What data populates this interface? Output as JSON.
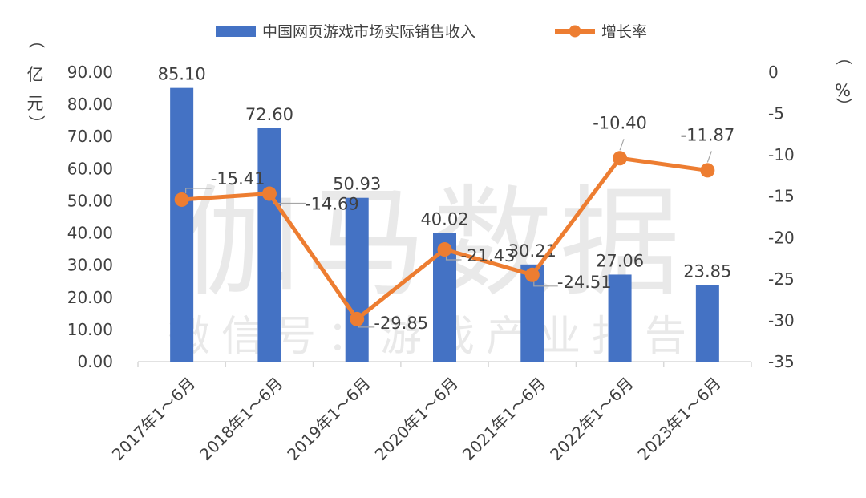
{
  "chart_data": {
    "type": "bar",
    "categories": [
      "2017年1～6月",
      "2018年1～6月",
      "2019年1～6月",
      "2020年1～6月",
      "2021年1～6月",
      "2022年1～6月",
      "2023年1～6月"
    ],
    "series": [
      {
        "name": "中国网页游戏市场实际销售收入",
        "type": "bar",
        "axis": "left",
        "color": "#4472C4",
        "values": [
          85.1,
          72.6,
          50.93,
          40.02,
          30.21,
          27.06,
          23.85
        ],
        "labels": [
          "85.10",
          "72.60",
          "50.93",
          "40.02",
          "30.21",
          "27.06",
          "23.85"
        ]
      },
      {
        "name": "增长率",
        "type": "line",
        "axis": "right",
        "color": "#ED7D31",
        "values": [
          -15.41,
          -14.69,
          -29.85,
          -21.43,
          -24.51,
          -10.4,
          -11.87
        ],
        "labels": [
          "-15.41",
          "-14.69",
          "-29.85",
          "-21.43",
          "-24.51",
          "-10.40",
          "-11.87"
        ]
      }
    ],
    "y_left": {
      "unit_chars": [
        "（",
        "亿",
        "元",
        "）"
      ],
      "ylim": [
        0,
        90
      ],
      "ticks": [
        "0.00",
        "10.00",
        "20.00",
        "30.00",
        "40.00",
        "50.00",
        "60.00",
        "70.00",
        "80.00",
        "90.00"
      ]
    },
    "y_right": {
      "unit_chars": [
        "（",
        "%",
        "）"
      ],
      "ylim": [
        -35,
        0
      ],
      "ticks": [
        "0",
        "-5",
        "-10",
        "-15",
        "-20",
        "-25",
        "-30",
        "-35"
      ]
    },
    "legend_position": "top-center",
    "grid": false,
    "watermark": {
      "line1": "伽马数据",
      "line2": "微信号：游戏产业报告"
    }
  }
}
